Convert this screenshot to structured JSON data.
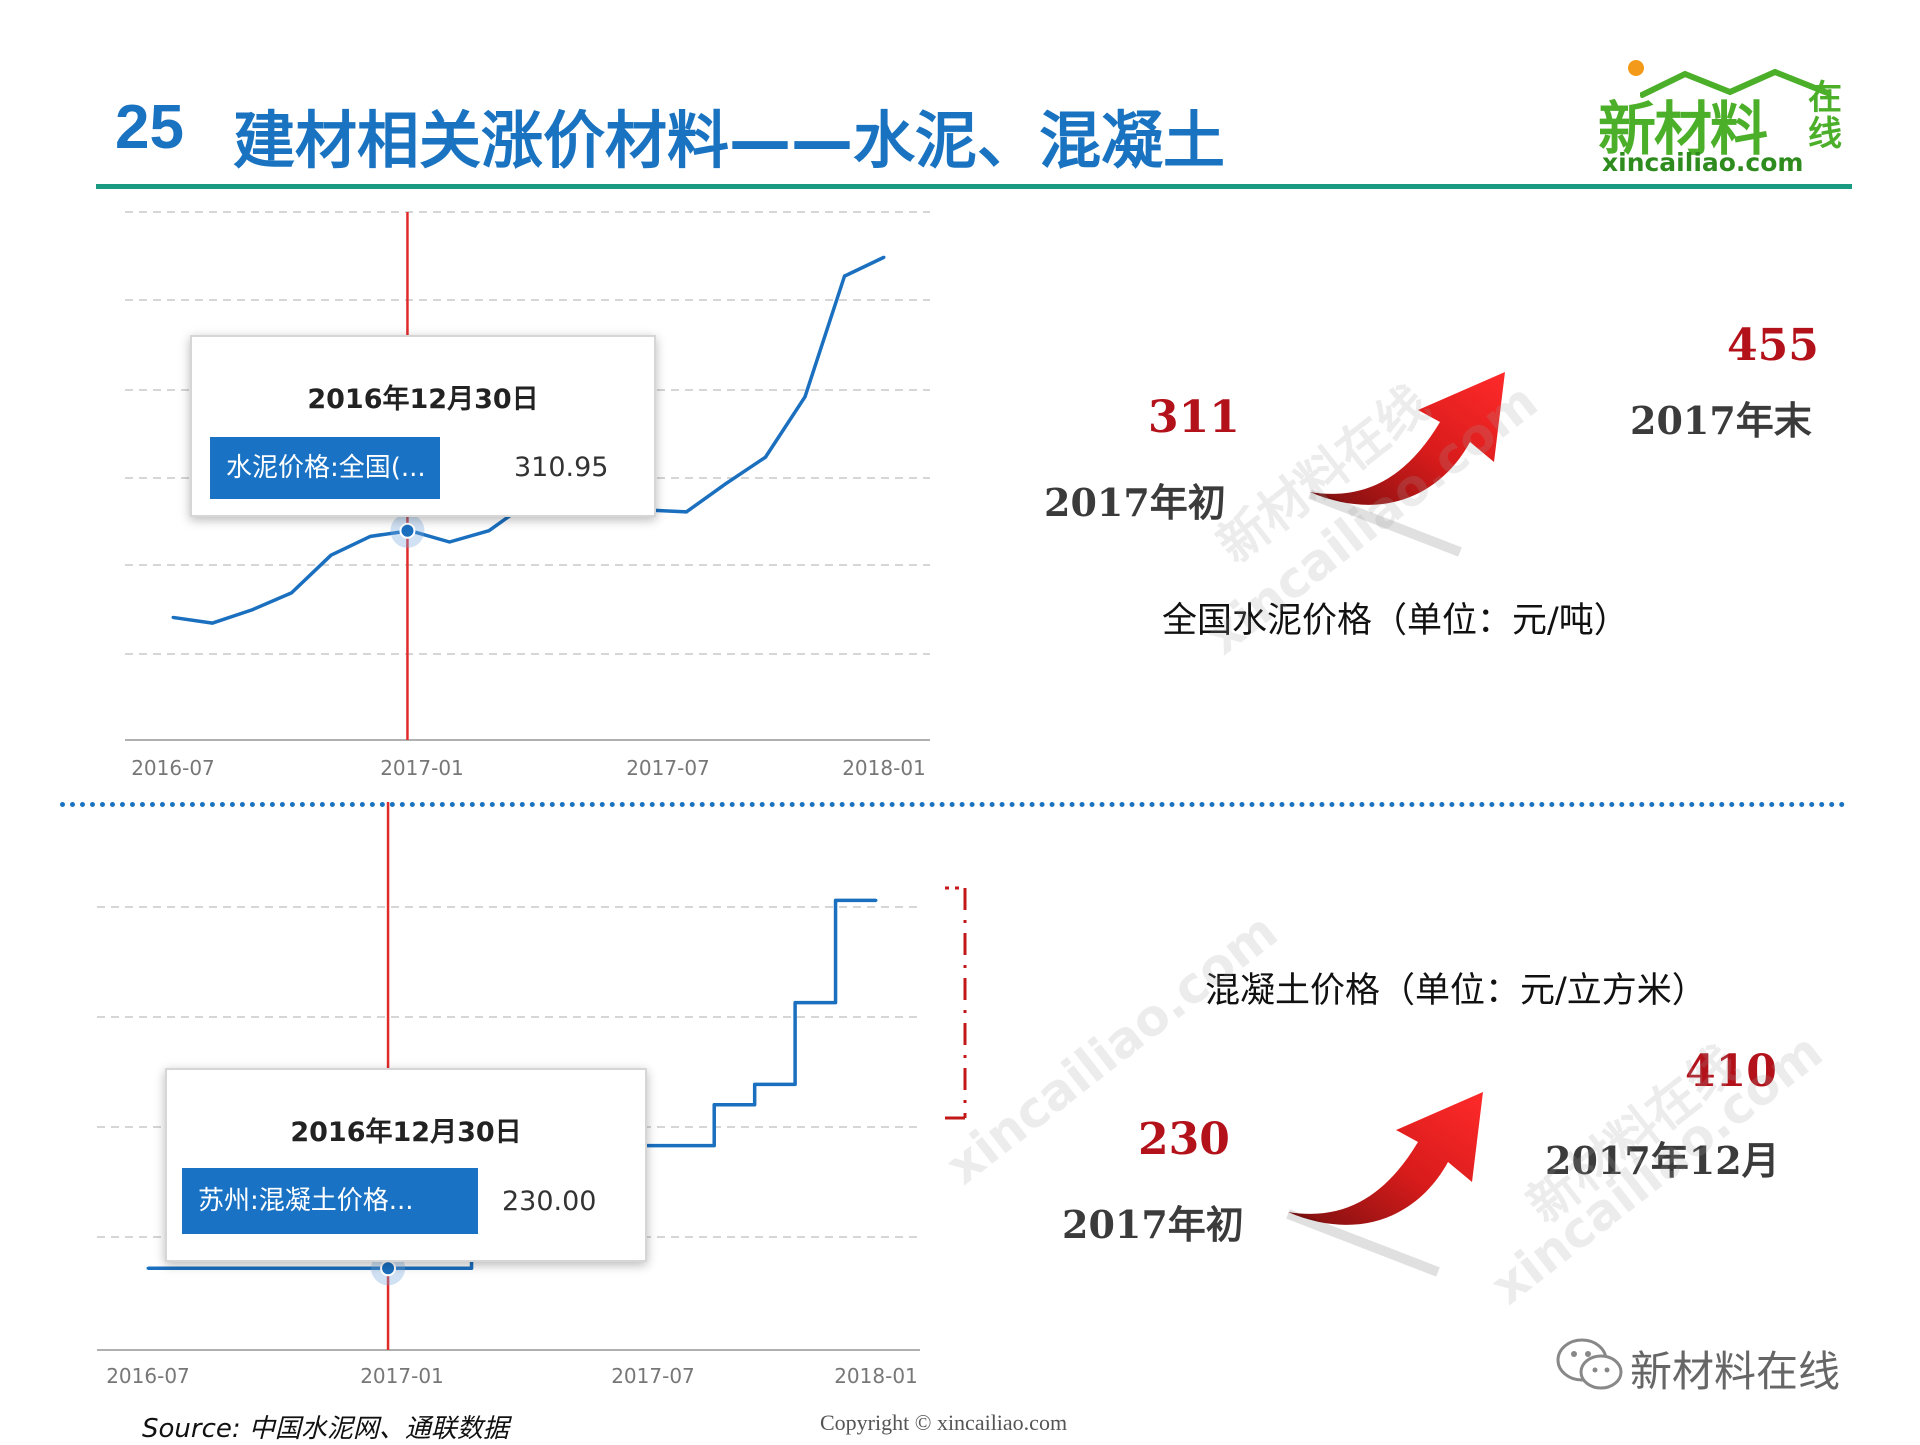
{
  "header": {
    "number": "25",
    "title": "建材相关涨价材料——水泥、混凝土"
  },
  "logo": {
    "main": "新材料",
    "side": "在线",
    "url": "xincailiao.com"
  },
  "chart_data": [
    {
      "type": "line",
      "name_label": "水泥价格:全国(...",
      "x_ticks": [
        "2016-07",
        "2017-01",
        "2017-07",
        "2018-01"
      ],
      "x": [
        "2016-07",
        "2016-08",
        "2016-09",
        "2016-10",
        "2016-11",
        "2016-12",
        "2017-01",
        "2017-02",
        "2017-03",
        "2017-04",
        "2017-05",
        "2017-06",
        "2017-07",
        "2017-08",
        "2017-09",
        "2017-10",
        "2017-11",
        "2017-12",
        "2018-01"
      ],
      "values": [
        265,
        262,
        269,
        278,
        298,
        308,
        311,
        305,
        311,
        326,
        332,
        328,
        322,
        321,
        336,
        350,
        382,
        446,
        456
      ],
      "ylim": [
        200,
        480
      ],
      "grid": true,
      "marker": {
        "date": "2016-12-30",
        "value": 310.95
      },
      "tooltip": {
        "date": "2016年12月30日",
        "label": "水泥价格:全国(...",
        "value": "310.95"
      }
    },
    {
      "type": "line",
      "step": true,
      "x_ticks": [
        "2016-07",
        "2017-01",
        "2017-07",
        "2018-01"
      ],
      "x": [
        "2016-07",
        "2016-09",
        "2016-11",
        "2017-01",
        "2017-03",
        "2017-04",
        "2017-05",
        "2017-06",
        "2017-07",
        "2017-08",
        "2017-09",
        "2017-10",
        "2017-11",
        "2017-12",
        "2018-01"
      ],
      "values": [
        230,
        230,
        230,
        230,
        240,
        270,
        300,
        300,
        290,
        290,
        310,
        320,
        360,
        410,
        410
      ],
      "ylim": [
        190,
        420
      ],
      "grid": true,
      "marker": {
        "date": "2016-12-30",
        "value": 230.0
      },
      "tooltip": {
        "date": "2016年12月30日",
        "label": "苏州:混凝土价格...",
        "value": "230.00"
      }
    }
  ],
  "annotations": {
    "cement": {
      "start_value": "311",
      "start_label": "2017年初",
      "end_value": "455",
      "end_label": "2017年末",
      "caption": "全国水泥价格（单位：元/吨）"
    },
    "concrete": {
      "start_value": "230",
      "start_label": "2017年初",
      "end_value": "410",
      "end_label": "2017年12月",
      "caption": "混凝土价格（单位：元/立方米）"
    }
  },
  "footer": {
    "source": "Source: 中国水泥网、通联数据",
    "copyright": "Copyright © xincailiao.com",
    "wechat": "新材料在线"
  },
  "watermark": {
    "cn": "新材料在线",
    "url": "xincailiao.com"
  },
  "colors": {
    "title_blue": "#1a73c1",
    "line_blue": "#1a6fbf",
    "marker_red": "#e02b2b",
    "value_red": "#b3121b",
    "rule_teal": "#1b9a82"
  }
}
